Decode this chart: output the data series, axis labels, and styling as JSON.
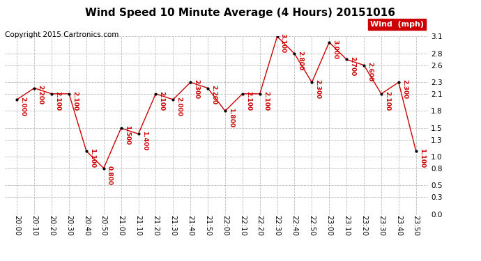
{
  "title": "Wind Speed 10 Minute Average (4 Hours) 20151016",
  "copyright": "Copyright 2015 Cartronics.com",
  "legend_label": "Wind  (mph)",
  "x_labels": [
    "20:00",
    "20:10",
    "20:20",
    "20:30",
    "20:40",
    "20:50",
    "21:00",
    "21:10",
    "21:20",
    "21:30",
    "21:40",
    "21:50",
    "22:00",
    "22:10",
    "22:20",
    "22:30",
    "22:40",
    "22:50",
    "23:00",
    "23:10",
    "23:20",
    "23:30",
    "23:40",
    "23:50"
  ],
  "y_values": [
    2.0,
    2.2,
    2.1,
    2.1,
    1.1,
    0.8,
    1.5,
    1.4,
    2.1,
    2.0,
    2.3,
    2.2,
    1.8,
    2.1,
    2.1,
    3.1,
    2.8,
    2.3,
    3.0,
    2.7,
    2.6,
    2.1,
    2.3,
    1.1
  ],
  "line_color": "#cc0000",
  "marker_color": "#000000",
  "label_color": "#cc0000",
  "legend_bg": "#cc0000",
  "legend_text_color": "#ffffff",
  "bg_color": "#ffffff",
  "grid_color": "#bbbbbb",
  "ylim": [
    0.0,
    3.1
  ],
  "yticks": [
    0.0,
    0.3,
    0.5,
    0.8,
    1.0,
    1.3,
    1.5,
    1.8,
    2.1,
    2.3,
    2.6,
    2.8,
    3.1
  ],
  "title_fontsize": 11,
  "copyright_fontsize": 7.5,
  "label_fontsize": 6.5,
  "tick_fontsize": 7.5,
  "legend_fontsize": 8
}
